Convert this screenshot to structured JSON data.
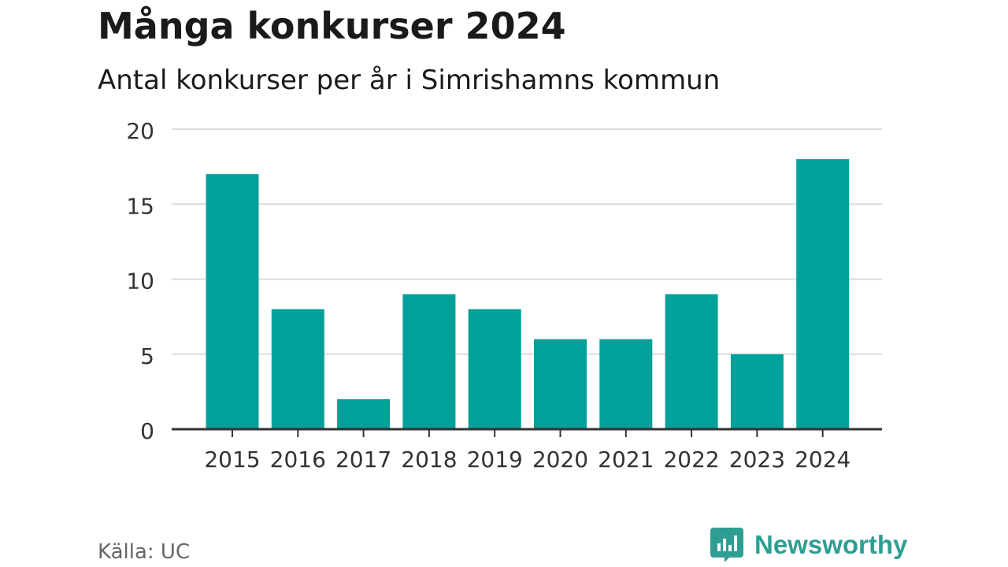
{
  "title": "Många konkurser 2024",
  "subtitle": "Antal konkurser per år i Simrishamns kommun",
  "source": "Källa: UC",
  "brand": {
    "name": "Newsworthy",
    "icon": "newsworthy-logo-icon",
    "color": "#2e9e93"
  },
  "chart_data": {
    "type": "bar",
    "title": "Många konkurser 2024",
    "subtitle": "Antal konkurser per år i Simrishamns kommun",
    "categories": [
      "2015",
      "2016",
      "2017",
      "2018",
      "2019",
      "2020",
      "2021",
      "2022",
      "2023",
      "2024"
    ],
    "values": [
      17,
      8,
      2,
      9,
      8,
      6,
      6,
      9,
      5,
      18
    ],
    "xlabel": "",
    "ylabel": "",
    "ylim": [
      0,
      20
    ],
    "yticks": [
      0,
      5,
      10,
      15,
      20
    ],
    "grid": true,
    "legend": "none",
    "bar_color": "#00a19a"
  }
}
